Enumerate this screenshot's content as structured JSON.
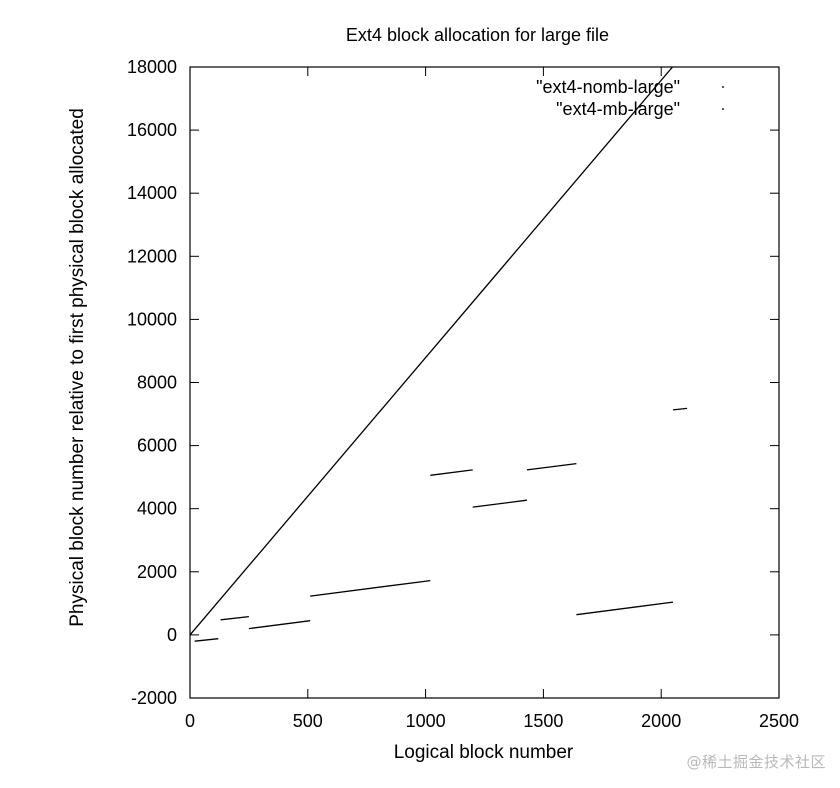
{
  "chart_data": {
    "type": "line",
    "title": "Ext4 block allocation for large file",
    "xlabel": "Logical block number",
    "ylabel": "Physical block number relative to first physical block allocated",
    "xlim": [
      0,
      2500
    ],
    "ylim": [
      -2000,
      18000
    ],
    "xticks": [
      0,
      500,
      1000,
      1500,
      2000,
      2500
    ],
    "yticks": [
      -2000,
      0,
      2000,
      4000,
      6000,
      8000,
      10000,
      12000,
      14000,
      16000,
      18000
    ],
    "grid": false,
    "legend_position": "top-right",
    "series": [
      {
        "name": "\"ext4-nomb-large\"",
        "segments": [
          {
            "x": [
              0,
              2048
            ],
            "y": [
              0,
              18000
            ]
          }
        ]
      },
      {
        "name": "\"ext4-mb-large\"",
        "segments": [
          {
            "x": [
              20,
              120
            ],
            "y": [
              -200,
              -120
            ]
          },
          {
            "x": [
              130,
              250
            ],
            "y": [
              480,
              580
            ]
          },
          {
            "x": [
              250,
              510
            ],
            "y": [
              200,
              450
            ]
          },
          {
            "x": [
              510,
              1020
            ],
            "y": [
              1230,
              1720
            ]
          },
          {
            "x": [
              1020,
              1200
            ],
            "y": [
              5060,
              5230
            ]
          },
          {
            "x": [
              1200,
              1430
            ],
            "y": [
              4050,
              4270
            ]
          },
          {
            "x": [
              1430,
              1640
            ],
            "y": [
              5230,
              5430
            ]
          },
          {
            "x": [
              1640,
              2050
            ],
            "y": [
              640,
              1040
            ]
          },
          {
            "x": [
              2050,
              2110
            ],
            "y": [
              7130,
              7180
            ]
          }
        ]
      }
    ]
  },
  "watermark": "@稀土掘金技术社区"
}
